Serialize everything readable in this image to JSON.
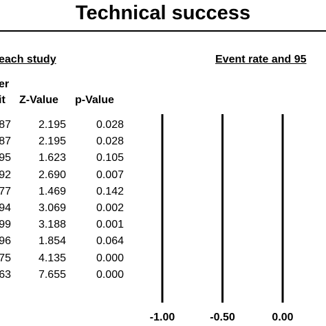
{
  "title": "Technical success",
  "sections": {
    "stats": "each study",
    "plot": "Event rate and 95"
  },
  "headers": {
    "lower_limit_line1": "er",
    "lower_limit_line2": "it",
    "z_value": "Z-Value",
    "p_value": "p-Value"
  },
  "chart_data": {
    "type": "table",
    "columns": [
      "limit (partial)",
      "Z-Value",
      "p-Value"
    ],
    "rows": [
      {
        "limit": "87",
        "z": "2.195",
        "p": "0.028"
      },
      {
        "limit": "87",
        "z": "2.195",
        "p": "0.028"
      },
      {
        "limit": "95",
        "z": "1.623",
        "p": "0.105"
      },
      {
        "limit": "92",
        "z": "2.690",
        "p": "0.007"
      },
      {
        "limit": "77",
        "z": "1.469",
        "p": "0.142"
      },
      {
        "limit": "94",
        "z": "3.069",
        "p": "0.002"
      },
      {
        "limit": "99",
        "z": "3.188",
        "p": "0.001"
      },
      {
        "limit": "96",
        "z": "1.854",
        "p": "0.064"
      },
      {
        "limit": "75",
        "z": "4.135",
        "p": "0.000"
      },
      {
        "limit": "63",
        "z": "7.655",
        "p": "0.000"
      }
    ],
    "forest_axis": {
      "ticks": [
        -1.0,
        -0.5,
        0.0
      ],
      "tick_labels": [
        "-1.00",
        "-0.50",
        "0.00"
      ]
    }
  }
}
